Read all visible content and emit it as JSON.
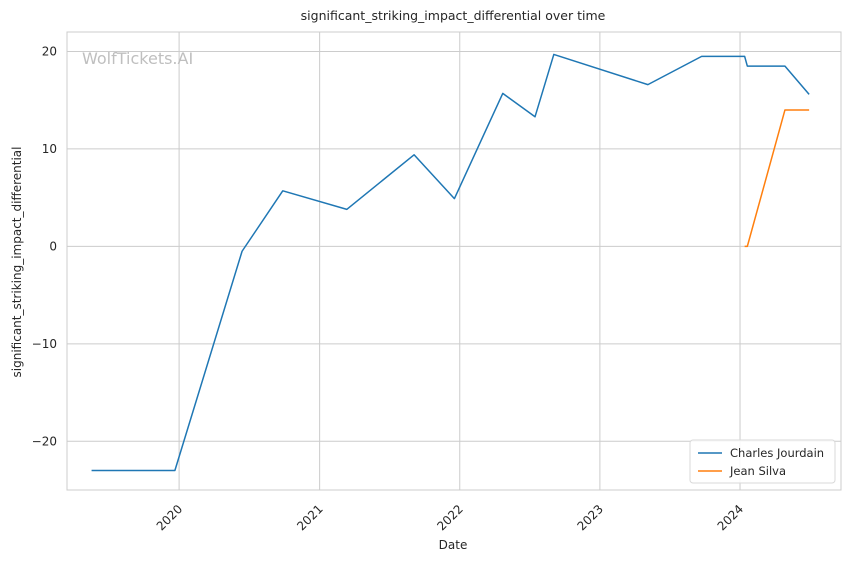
{
  "chart_data": {
    "type": "line",
    "title": "significant_striking_impact_differential over time",
    "xlabel": "Date",
    "ylabel": "significant_striking_impact_differential",
    "watermark": "WolfTickets.AI",
    "x_type": "date",
    "xlim": [
      "2019-03-15",
      "2024-09-20"
    ],
    "ylim": [
      -25,
      22
    ],
    "x_ticks": [
      {
        "date": "2020-01-01",
        "label": "2020"
      },
      {
        "date": "2021-01-01",
        "label": "2021"
      },
      {
        "date": "2022-01-01",
        "label": "2022"
      },
      {
        "date": "2023-01-01",
        "label": "2023"
      },
      {
        "date": "2024-01-01",
        "label": "2024"
      }
    ],
    "y_ticks": [
      {
        "value": 20,
        "label": "20"
      },
      {
        "value": 10,
        "label": "10"
      },
      {
        "value": 0,
        "label": "0"
      },
      {
        "value": -10,
        "label": "−10"
      },
      {
        "value": -20,
        "label": "−20"
      }
    ],
    "grid": true,
    "legend_position": "bottom-right",
    "series": [
      {
        "name": "Charles Jourdain",
        "color": "#1f77b4",
        "points": [
          {
            "x": "2019-05-18",
            "y": -23
          },
          {
            "x": "2019-12-21",
            "y": -23
          },
          {
            "x": "2020-06-13",
            "y": -0.5
          },
          {
            "x": "2020-09-27",
            "y": 5.7
          },
          {
            "x": "2021-03-13",
            "y": 3.8
          },
          {
            "x": "2021-09-04",
            "y": 9.4
          },
          {
            "x": "2021-12-18",
            "y": 4.9
          },
          {
            "x": "2022-04-23",
            "y": 15.7
          },
          {
            "x": "2022-07-16",
            "y": 13.3
          },
          {
            "x": "2022-09-03",
            "y": 19.7
          },
          {
            "x": "2023-05-06",
            "y": 16.6
          },
          {
            "x": "2023-09-23",
            "y": 19.5
          },
          {
            "x": "2024-01-13",
            "y": 19.5
          },
          {
            "x": "2024-01-20",
            "y": 18.5
          },
          {
            "x": "2024-04-27",
            "y": 18.5
          },
          {
            "x": "2024-06-29",
            "y": 15.6
          }
        ]
      },
      {
        "name": "Jean Silva",
        "color": "#ff7f0e",
        "points": [
          {
            "x": "2024-01-13",
            "y": 0
          },
          {
            "x": "2024-01-20",
            "y": 0
          },
          {
            "x": "2024-04-27",
            "y": 14
          },
          {
            "x": "2024-06-29",
            "y": 14
          }
        ]
      }
    ]
  }
}
